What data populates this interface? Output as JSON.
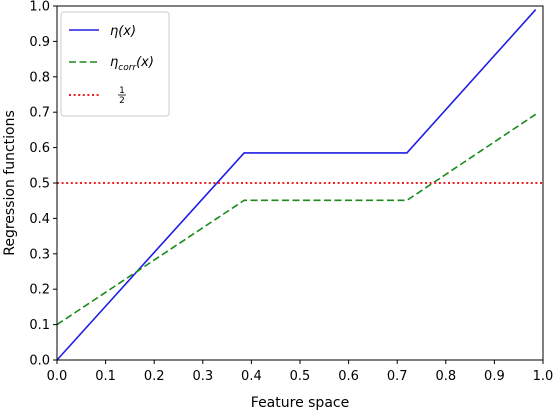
{
  "chart_data": {
    "type": "line",
    "xlabel": "Feature space",
    "ylabel": "Regression functions",
    "xlim": [
      0.0,
      1.0
    ],
    "ylim": [
      0.0,
      1.0
    ],
    "xticks": [
      "0.0",
      "0.1",
      "0.2",
      "0.3",
      "0.4",
      "0.5",
      "0.6",
      "0.7",
      "0.8",
      "0.9",
      "1.0"
    ],
    "yticks": [
      "0.0",
      "0.1",
      "0.2",
      "0.3",
      "0.4",
      "0.5",
      "0.6",
      "0.7",
      "0.8",
      "0.9",
      "1.0"
    ],
    "grid": false,
    "legend_position": "top-left",
    "series": [
      {
        "name": "η(x)",
        "label_main": "η(x)",
        "color": "#1f1fe6",
        "style": "solid",
        "x": [
          0.0,
          0.385,
          0.72,
          0.985
        ],
        "y": [
          0.0,
          0.585,
          0.585,
          0.99
        ]
      },
      {
        "name": "η_corr(x)",
        "label_main": "η",
        "label_sub": "corr",
        "label_tail": "(x)",
        "color": "#1a8a1a",
        "style": "dashed",
        "x": [
          0.0,
          0.385,
          0.72,
          0.985
        ],
        "y": [
          0.1,
          0.451,
          0.451,
          0.694
        ]
      },
      {
        "name": "1/2",
        "label_num": "1",
        "label_den": "2",
        "color": "#ee2222",
        "style": "dotted",
        "x": [
          0.0,
          1.0
        ],
        "y": [
          0.5,
          0.5
        ]
      }
    ]
  }
}
